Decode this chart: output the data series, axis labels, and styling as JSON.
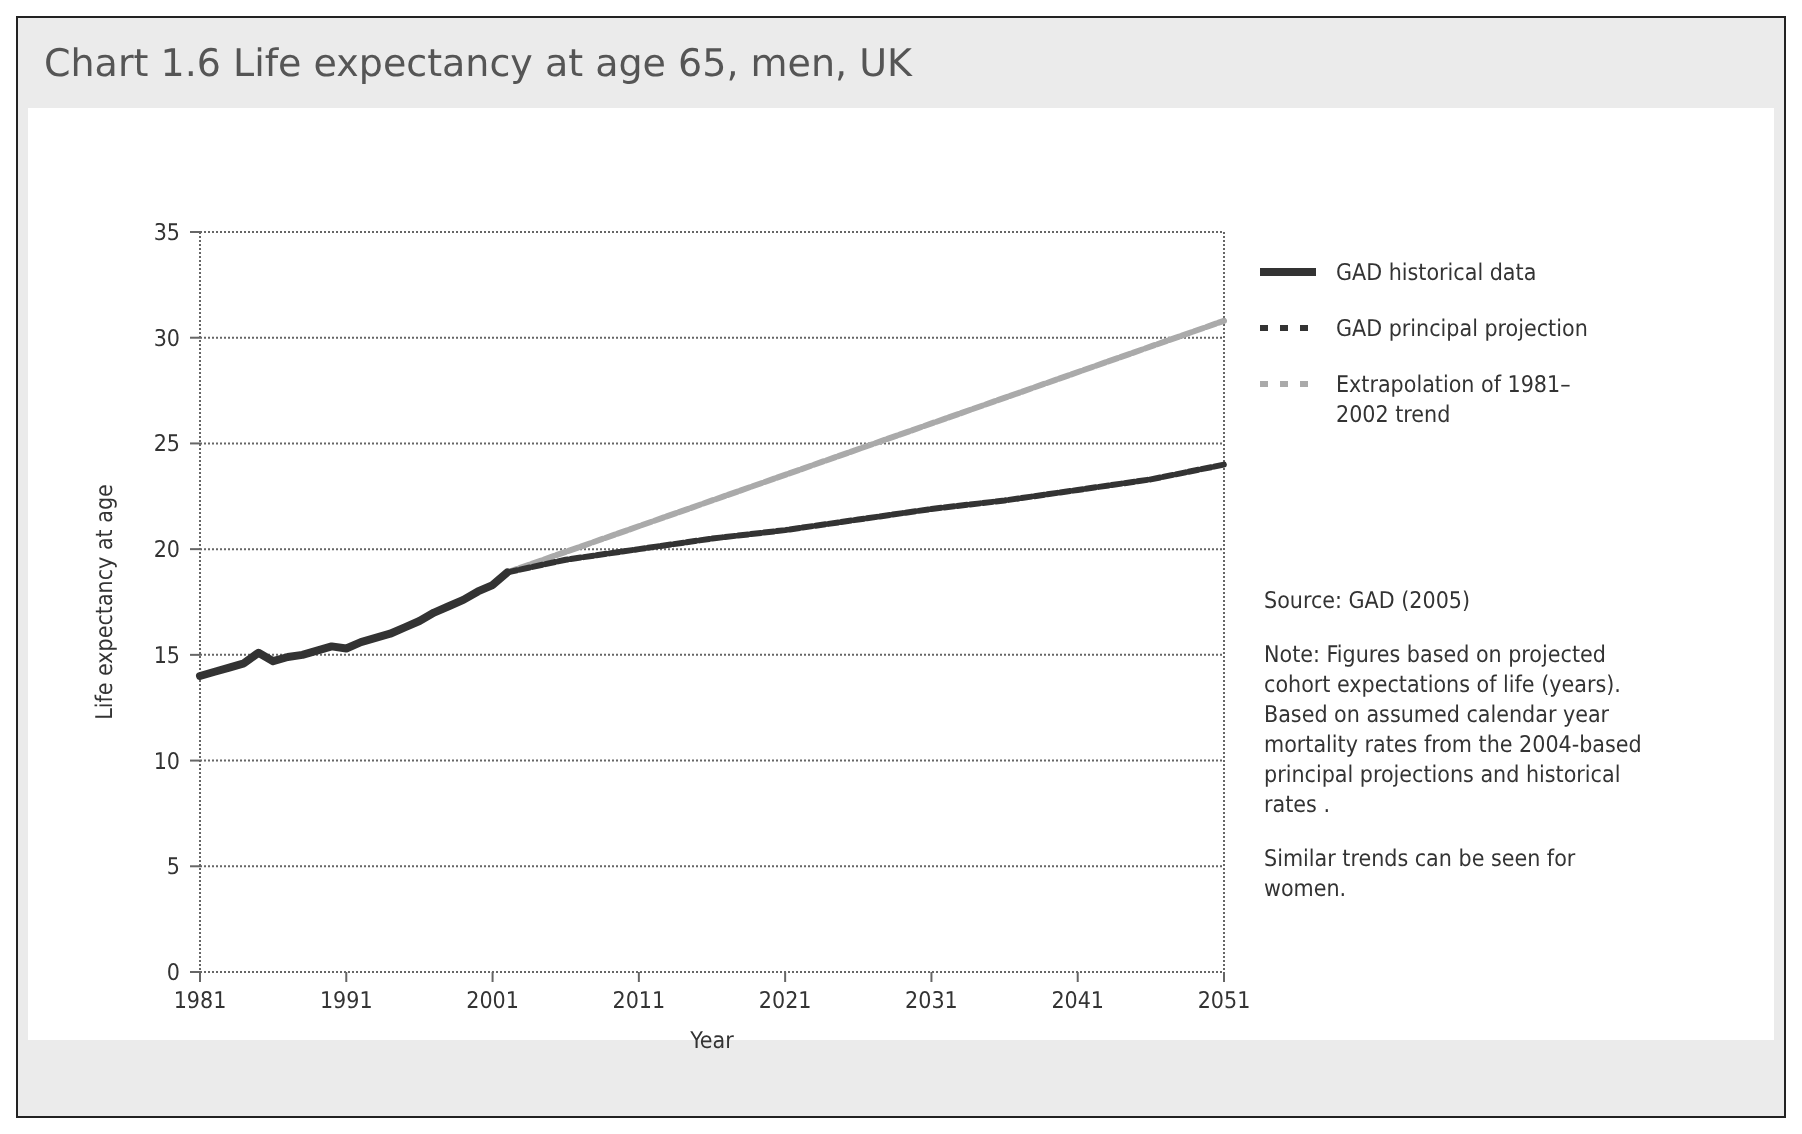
{
  "chart_data": {
    "type": "line",
    "title": "Chart 1.6 Life expectancy at age 65, men, UK",
    "xlabel": "Year",
    "ylabel": "Life expectancy at age",
    "xlim": [
      1981,
      2051
    ],
    "xticks": [
      1981,
      1991,
      2001,
      2011,
      2021,
      2031,
      2041,
      2051
    ],
    "ylim": [
      0,
      35
    ],
    "yticks": [
      0,
      5,
      10,
      15,
      20,
      25,
      30,
      35
    ],
    "grid": "y",
    "legend": "right",
    "series": [
      {
        "name": "GAD historical data",
        "color": "#333333",
        "line_style": "solid",
        "x": [
          1981,
          1982,
          1983,
          1984,
          1985,
          1986,
          1987,
          1988,
          1989,
          1990,
          1991,
          1992,
          1993,
          1994,
          1995,
          1996,
          1997,
          1998,
          1999,
          2000,
          2001,
          2002
        ],
        "values": [
          14.0,
          14.2,
          14.4,
          14.6,
          15.1,
          14.7,
          14.9,
          15.0,
          15.2,
          15.4,
          15.3,
          15.6,
          15.8,
          16.0,
          16.3,
          16.6,
          17.0,
          17.3,
          17.6,
          18.0,
          18.3,
          18.9
        ]
      },
      {
        "name": "GAD principal projection",
        "color": "#333333",
        "line_style": "dashed",
        "x": [
          2002,
          2006,
          2011,
          2016,
          2021,
          2026,
          2031,
          2036,
          2041,
          2046,
          2051
        ],
        "values": [
          18.9,
          19.5,
          20.0,
          20.5,
          20.9,
          21.4,
          21.9,
          22.3,
          22.8,
          23.3,
          24.0
        ]
      },
      {
        "name": "Extrapolation of 1981– 2002 trend",
        "color": "#aaaaaa",
        "line_style": "dashed",
        "x": [
          2002,
          2051
        ],
        "values": [
          18.9,
          30.8
        ]
      }
    ],
    "annotations": [
      "Source: GAD (2005)",
      "Note: Figures based on projected cohort expectations of life (years). Based on assumed calendar year mortality rates from the 2004-based principal projections and historical rates .",
      "Similar trends can be seen for women."
    ]
  }
}
